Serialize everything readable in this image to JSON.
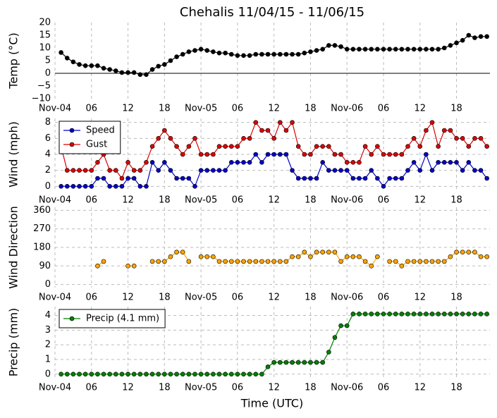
{
  "chart_data": [
    {
      "type": "line",
      "title": "Chehalis 11/04/15 - 11/06/15",
      "ylabel": "Temp (°C)",
      "x": [
        1,
        2,
        3,
        4,
        5,
        6,
        7,
        8,
        9,
        10,
        11,
        12,
        13,
        14,
        15,
        16,
        17,
        18,
        19,
        20,
        21,
        22,
        23,
        24,
        25,
        26,
        27,
        28,
        29,
        30,
        31,
        32,
        33,
        34,
        35,
        36,
        37,
        38,
        39,
        40,
        41,
        42,
        43,
        44,
        45,
        46,
        47,
        48,
        49,
        50,
        51,
        52,
        53,
        54,
        55,
        56,
        57,
        58,
        59,
        60,
        61,
        62,
        63,
        64,
        65,
        66,
        67,
        68,
        69,
        70,
        71
      ],
      "series": [
        {
          "name": null,
          "color": "#000000",
          "values": [
            8.2,
            6,
            4.5,
            3.5,
            3,
            3,
            3,
            2,
            1.5,
            1,
            0.3,
            0.3,
            0.3,
            -0.5,
            -0.5,
            1.5,
            2.8,
            3.5,
            5,
            6.5,
            7.5,
            8.5,
            9,
            9.5,
            9,
            8.5,
            8,
            8,
            7.5,
            7,
            7,
            7,
            7.5,
            7.5,
            7.5,
            7.5,
            7.5,
            7.5,
            7.5,
            7.5,
            8,
            8.5,
            9,
            9.5,
            11,
            11,
            10.5,
            9.5,
            9.5,
            9.5,
            9.5,
            9.5,
            9.5,
            9.5,
            9.5,
            9.5,
            9.5,
            9.5,
            9.5,
            9.5,
            9.5,
            9.5,
            9.5,
            10,
            11,
            12,
            13,
            15,
            14,
            14.5,
            14.5
          ]
        }
      ],
      "xlim": [
        0,
        71.5
      ],
      "xticks": [
        {
          "value": 0,
          "label": "Nov-04"
        },
        {
          "value": 6,
          "label": "06"
        },
        {
          "value": 12,
          "label": "12"
        },
        {
          "value": 18,
          "label": "18"
        },
        {
          "value": 24,
          "label": "Nov-05"
        },
        {
          "value": 30,
          "label": "06"
        },
        {
          "value": 36,
          "label": "12"
        },
        {
          "value": 42,
          "label": "18"
        },
        {
          "value": 48,
          "label": "Nov-06"
        },
        {
          "value": 54,
          "label": "06"
        },
        {
          "value": 60,
          "label": "12"
        },
        {
          "value": 66,
          "label": "18"
        }
      ],
      "ylim": [
        -10,
        20
      ],
      "yticks": [
        {
          "value": -10,
          "label": "−10"
        },
        {
          "value": -5,
          "label": "−5"
        },
        0,
        5,
        10,
        15,
        20
      ],
      "xgrid": true,
      "ygrid": false,
      "hline": 0
    },
    {
      "type": "line",
      "ylabel": "Wind (mph)",
      "x": [
        1,
        2,
        3,
        4,
        5,
        6,
        7,
        8,
        9,
        10,
        11,
        12,
        13,
        14,
        15,
        16,
        17,
        18,
        19,
        20,
        21,
        22,
        23,
        24,
        25,
        26,
        27,
        28,
        29,
        30,
        31,
        32,
        33,
        34,
        35,
        36,
        37,
        38,
        39,
        40,
        41,
        42,
        43,
        44,
        45,
        46,
        47,
        48,
        49,
        50,
        51,
        52,
        53,
        54,
        55,
        56,
        57,
        58,
        59,
        60,
        61,
        62,
        63,
        64,
        65,
        66,
        67,
        68,
        69,
        70,
        71
      ],
      "series": [
        {
          "name": "Speed",
          "color": "#0000cc",
          "values": [
            0,
            0,
            0,
            0,
            0,
            0,
            1,
            1,
            0,
            0,
            0,
            1,
            1,
            0,
            0,
            3,
            2,
            3,
            2,
            1,
            1,
            1,
            0,
            2,
            2,
            2,
            2,
            2,
            3,
            3,
            3,
            3,
            4,
            3,
            4,
            4,
            4,
            4,
            2,
            1,
            1,
            1,
            1,
            3,
            2,
            2,
            2,
            2,
            1,
            1,
            1,
            2,
            1,
            0,
            1,
            1,
            1,
            2,
            3,
            2,
            4,
            2,
            3,
            3,
            3,
            3,
            2,
            3,
            2,
            2,
            1
          ]
        },
        {
          "name": "Gust",
          "color": "#dd0000",
          "values": [
            5,
            2,
            2,
            2,
            2,
            2,
            3,
            4,
            2,
            2,
            1,
            3,
            2,
            2,
            3,
            5,
            6,
            7,
            6,
            5,
            4,
            5,
            6,
            4,
            4,
            4,
            5,
            5,
            5,
            5,
            6,
            6,
            8,
            7,
            7,
            6,
            8,
            7,
            8,
            5,
            4,
            4,
            5,
            5,
            5,
            4,
            4,
            3,
            3,
            3,
            5,
            4,
            5,
            4,
            4,
            4,
            4,
            5,
            6,
            5,
            7,
            8,
            5,
            7,
            7,
            6,
            6,
            5,
            6,
            6,
            5
          ]
        }
      ],
      "xlim": [
        0,
        71.5
      ],
      "xticks": [
        {
          "value": 0,
          "label": "Nov-04"
        },
        {
          "value": 6,
          "label": "06"
        },
        {
          "value": 12,
          "label": "12"
        },
        {
          "value": 18,
          "label": "18"
        },
        {
          "value": 24,
          "label": "Nov-05"
        },
        {
          "value": 30,
          "label": "06"
        },
        {
          "value": 36,
          "label": "12"
        },
        {
          "value": 42,
          "label": "18"
        },
        {
          "value": 48,
          "label": "Nov-06"
        },
        {
          "value": 54,
          "label": "06"
        },
        {
          "value": 60,
          "label": "12"
        },
        {
          "value": 66,
          "label": "18"
        }
      ],
      "ylim": [
        -0.5,
        8.5
      ],
      "yticks": [
        0,
        2,
        4,
        6,
        8
      ],
      "xgrid": true,
      "ygrid": true,
      "legend": "upper left"
    },
    {
      "type": "line",
      "ylabel": "Wind Direction",
      "x": [
        1,
        2,
        3,
        4,
        5,
        6,
        7,
        8,
        9,
        10,
        11,
        12,
        13,
        14,
        15,
        16,
        17,
        18,
        19,
        20,
        21,
        22,
        23,
        24,
        25,
        26,
        27,
        28,
        29,
        30,
        31,
        32,
        33,
        34,
        35,
        36,
        37,
        38,
        39,
        40,
        41,
        42,
        43,
        44,
        45,
        46,
        47,
        48,
        49,
        50,
        51,
        52,
        53,
        54,
        55,
        56,
        57,
        58,
        59,
        60,
        61,
        62,
        63,
        64,
        65,
        66,
        67,
        68,
        69,
        70,
        71
      ],
      "series": [
        {
          "name": null,
          "color": "#ffa500",
          "values": [
            null,
            null,
            null,
            null,
            null,
            null,
            90,
            112,
            null,
            null,
            null,
            90,
            90,
            null,
            null,
            112,
            112,
            112,
            135,
            157,
            157,
            112,
            null,
            135,
            135,
            135,
            112,
            112,
            112,
            112,
            112,
            112,
            112,
            112,
            112,
            112,
            112,
            112,
            135,
            135,
            157,
            135,
            157,
            157,
            157,
            157,
            112,
            135,
            135,
            135,
            112,
            90,
            135,
            null,
            112,
            112,
            90,
            112,
            112,
            112,
            112,
            112,
            112,
            112,
            135,
            157,
            157,
            157,
            157,
            135,
            135
          ]
        }
      ],
      "xlim": [
        0,
        71.5
      ],
      "xticks": [
        {
          "value": 0,
          "label": "Nov-04"
        },
        {
          "value": 6,
          "label": "06"
        },
        {
          "value": 12,
          "label": "12"
        },
        {
          "value": 18,
          "label": "18"
        },
        {
          "value": 24,
          "label": "Nov-05"
        },
        {
          "value": 30,
          "label": "06"
        },
        {
          "value": 36,
          "label": "12"
        },
        {
          "value": 42,
          "label": "18"
        },
        {
          "value": 48,
          "label": "Nov-06"
        },
        {
          "value": 54,
          "label": "06"
        },
        {
          "value": 60,
          "label": "12"
        },
        {
          "value": 66,
          "label": "18"
        }
      ],
      "ylim": [
        -15,
        375
      ],
      "yticks": [
        0,
        90,
        180,
        270,
        360
      ],
      "xgrid": true,
      "ygrid": true
    },
    {
      "type": "line",
      "ylabel": "Precip (mm)",
      "xlabel": "Time (UTC)",
      "x": [
        1,
        2,
        3,
        4,
        5,
        6,
        7,
        8,
        9,
        10,
        11,
        12,
        13,
        14,
        15,
        16,
        17,
        18,
        19,
        20,
        21,
        22,
        23,
        24,
        25,
        26,
        27,
        28,
        29,
        30,
        31,
        32,
        33,
        34,
        35,
        36,
        37,
        38,
        39,
        40,
        41,
        42,
        43,
        44,
        45,
        46,
        47,
        48,
        49,
        50,
        51,
        52,
        53,
        54,
        55,
        56,
        57,
        58,
        59,
        60,
        61,
        62,
        63,
        64,
        65,
        66,
        67,
        68,
        69,
        70,
        71
      ],
      "series": [
        {
          "name": "Precip (4.1 mm)",
          "color": "#008000",
          "values": [
            0,
            0,
            0,
            0,
            0,
            0,
            0,
            0,
            0,
            0,
            0,
            0,
            0,
            0,
            0,
            0,
            0,
            0,
            0,
            0,
            0,
            0,
            0,
            0,
            0,
            0,
            0,
            0,
            0,
            0,
            0,
            0,
            0,
            0,
            0.5,
            0.8,
            0.8,
            0.8,
            0.8,
            0.8,
            0.8,
            0.8,
            0.8,
            0.8,
            1.5,
            2.5,
            3.3,
            3.3,
            4.1,
            4.1,
            4.1,
            4.1,
            4.1,
            4.1,
            4.1,
            4.1,
            4.1,
            4.1,
            4.1,
            4.1,
            4.1,
            4.1,
            4.1,
            4.1,
            4.1,
            4.1,
            4.1,
            4.1,
            4.1,
            4.1,
            4.1
          ]
        }
      ],
      "xlim": [
        0,
        71.5
      ],
      "xticks": [
        {
          "value": 0,
          "label": "Nov-04"
        },
        {
          "value": 6,
          "label": "06"
        },
        {
          "value": 12,
          "label": "12"
        },
        {
          "value": 18,
          "label": "18"
        },
        {
          "value": 24,
          "label": "Nov-05"
        },
        {
          "value": 30,
          "label": "06"
        },
        {
          "value": 36,
          "label": "12"
        },
        {
          "value": 42,
          "label": "18"
        },
        {
          "value": 48,
          "label": "Nov-06"
        },
        {
          "value": 54,
          "label": "06"
        },
        {
          "value": 60,
          "label": "12"
        },
        {
          "value": 66,
          "label": "18"
        }
      ],
      "ylim": [
        -0.25,
        4.6
      ],
      "yticks": [
        0,
        1,
        2,
        3,
        4
      ],
      "xgrid": true,
      "ygrid": true,
      "legend": "upper left"
    }
  ]
}
